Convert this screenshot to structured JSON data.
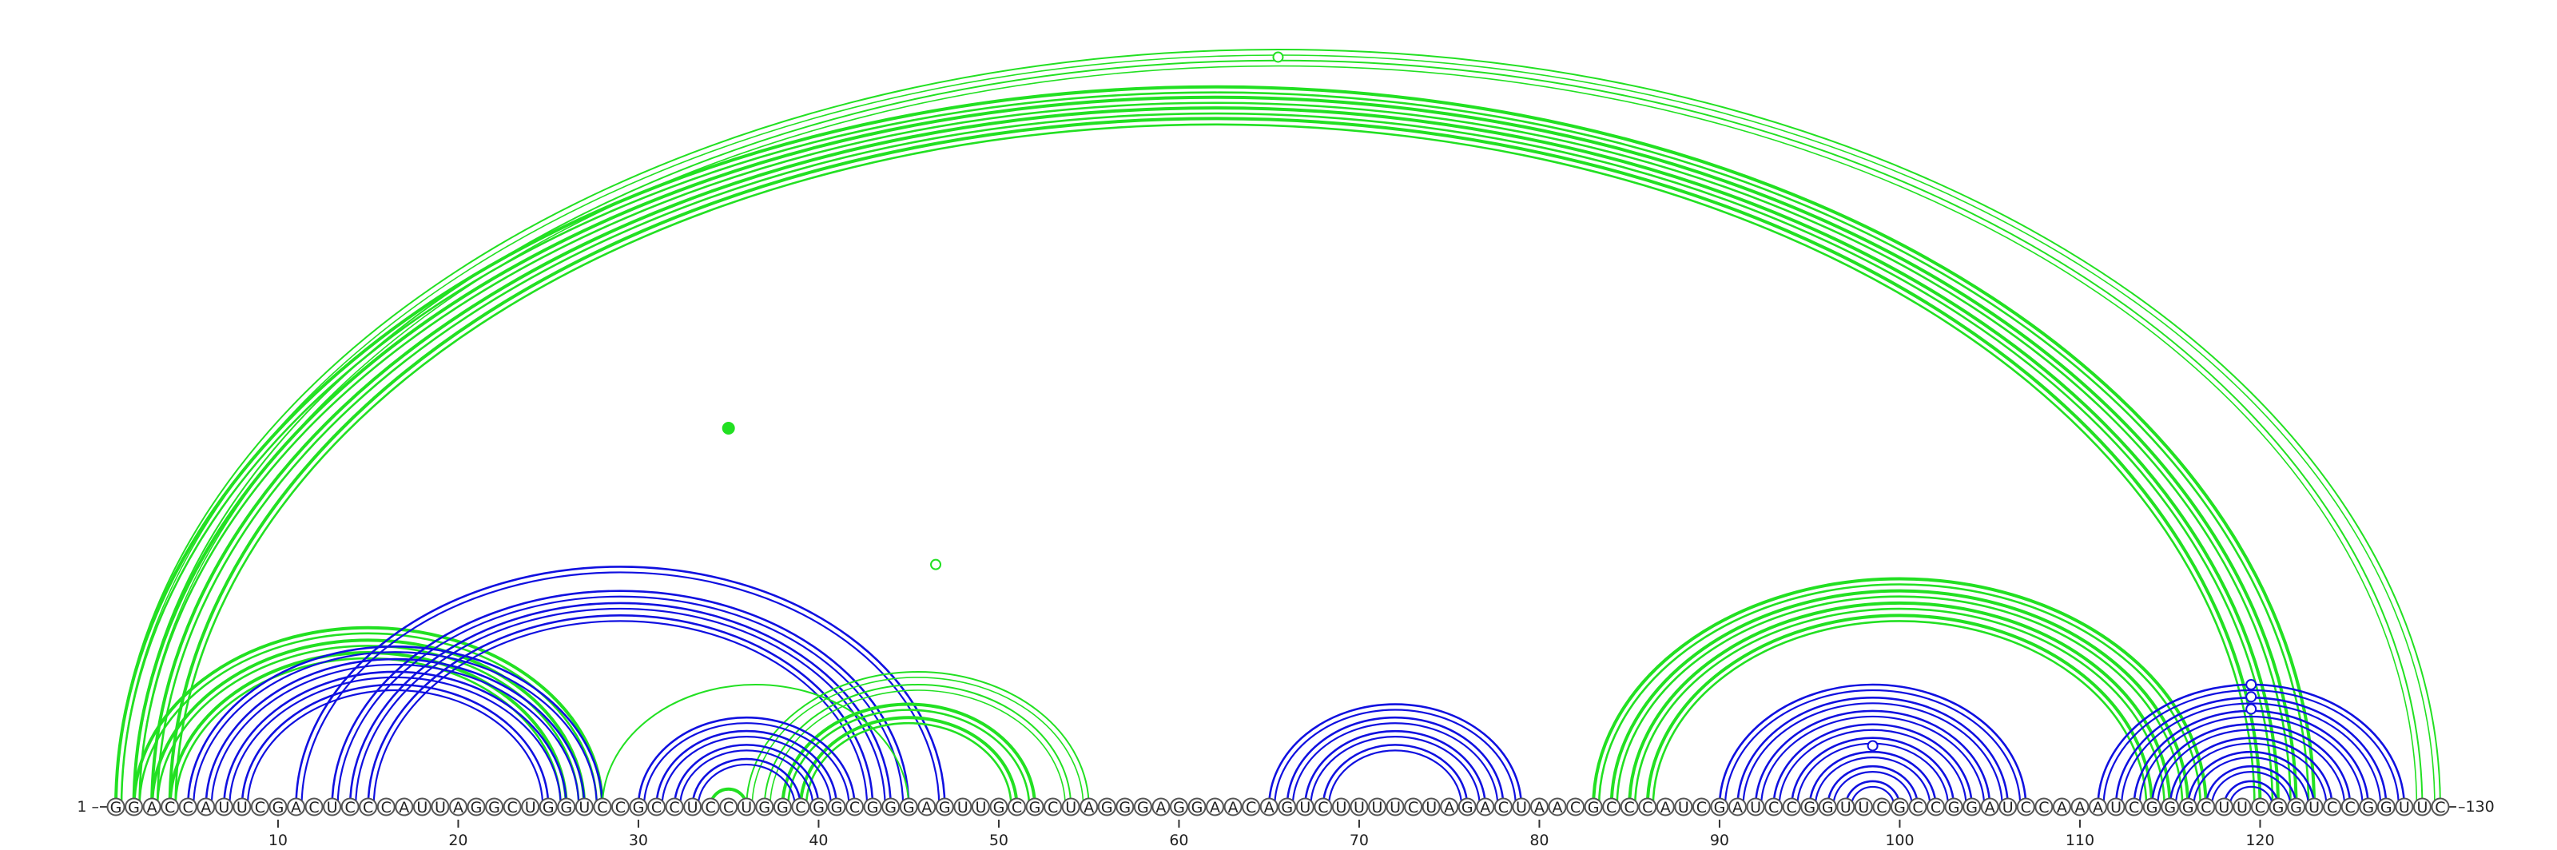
{
  "sequence": "GGACCAUUCGACUCCCAUUAGGCUGGUCCGCCUCCUGGCGGCGGGAGUUGCGCUAGGGAGGAACAGUCUUUUCUAGACUAACGCCCAUCGAUCCGGUUCGCCGGAUCCAAAUCGGGCUUCGGUCCGGUUC",
  "labels": {
    "start_prefix": "1 –",
    "end_suffix": "–130"
  },
  "axis_ticks": [
    10,
    20,
    30,
    40,
    50,
    60,
    70,
    80,
    90,
    100,
    110,
    120
  ],
  "colors": {
    "blue": "#1010e0",
    "green": "#22e022",
    "outline": "#555555"
  },
  "chart_data": {
    "type": "arc-diagram",
    "helices": [
      {
        "color": "green",
        "pairs": [
          [
            1,
            123
          ],
          [
            2,
            122
          ],
          [
            3,
            121
          ],
          [
            4,
            120
          ]
        ],
        "line": "double",
        "weight": "heavy"
      },
      {
        "color": "green",
        "pairs": [
          [
            1,
            130
          ],
          [
            2,
            129
          ]
        ],
        "line": "double",
        "weight": "thin"
      },
      {
        "color": "green",
        "pairs": [
          [
            2,
            28
          ],
          [
            3,
            27
          ],
          [
            4,
            26
          ]
        ],
        "line": "double",
        "weight": "heavy"
      },
      {
        "color": "blue",
        "pairs": [
          [
            5,
            28
          ],
          [
            6,
            27
          ],
          [
            7,
            26
          ],
          [
            8,
            25
          ]
        ],
        "line": "double",
        "weight": "normal"
      },
      {
        "color": "blue",
        "pairs": [
          [
            11,
            47
          ],
          [
            13,
            45
          ],
          [
            14,
            44
          ],
          [
            15,
            43
          ]
        ],
        "line": "double",
        "weight": "normal"
      },
      {
        "color": "green",
        "pairs": [
          [
            28,
            45
          ]
        ],
        "line": "single",
        "weight": "thin"
      },
      {
        "color": "green",
        "pairs": [
          [
            36,
            55
          ],
          [
            37,
            54
          ]
        ],
        "line": "double",
        "weight": "thin"
      },
      {
        "color": "green",
        "pairs": [
          [
            38,
            52
          ],
          [
            39,
            51
          ]
        ],
        "line": "double",
        "weight": "heavy"
      },
      {
        "color": "blue",
        "pairs": [
          [
            30,
            42
          ],
          [
            31,
            41
          ],
          [
            32,
            40
          ],
          [
            33,
            39
          ]
        ],
        "line": "double",
        "weight": "normal"
      },
      {
        "color": "green",
        "pairs": [
          [
            34,
            36
          ]
        ],
        "line": "single",
        "weight": "heavy"
      },
      {
        "color": "blue",
        "pairs": [
          [
            65,
            79
          ],
          [
            66,
            78
          ],
          [
            67,
            77
          ],
          [
            68,
            76
          ]
        ],
        "line": "double",
        "weight": "normal"
      },
      {
        "color": "green",
        "pairs": [
          [
            83,
            117
          ],
          [
            84,
            116
          ],
          [
            85,
            115
          ],
          [
            86,
            114
          ]
        ],
        "line": "double",
        "weight": "heavy"
      },
      {
        "color": "blue",
        "pairs": [
          [
            90,
            107
          ],
          [
            91,
            106
          ],
          [
            92,
            105
          ],
          [
            93,
            104
          ],
          [
            94,
            103
          ],
          [
            95,
            102
          ],
          [
            96,
            101
          ],
          [
            97,
            100
          ]
        ],
        "line": "double",
        "weight": "normal"
      },
      {
        "color": "blue",
        "pairs": [
          [
            111,
            128
          ],
          [
            112,
            127
          ],
          [
            113,
            126
          ],
          [
            114,
            125
          ],
          [
            115,
            124
          ],
          [
            116,
            123
          ],
          [
            117,
            122
          ],
          [
            118,
            121
          ]
        ],
        "line": "double",
        "weight": "normal"
      }
    ],
    "markers": [
      {
        "pos": 65.5,
        "height": 0.99,
        "color": "green",
        "filled": false
      },
      {
        "pos": 46.5,
        "height": 0.32,
        "color": "green",
        "filled": false
      },
      {
        "pos": 35,
        "height": 0.5,
        "color": "green",
        "filled": true
      },
      {
        "pos": 98.5,
        "height": 0.5,
        "color": "blue",
        "filled": false
      },
      {
        "pos": 119.5,
        "height": 1.0,
        "color": "blue",
        "filled": false
      },
      {
        "pos": 119.5,
        "height": 0.9,
        "color": "blue",
        "filled": false
      },
      {
        "pos": 119.5,
        "height": 0.8,
        "color": "blue",
        "filled": false
      }
    ]
  }
}
